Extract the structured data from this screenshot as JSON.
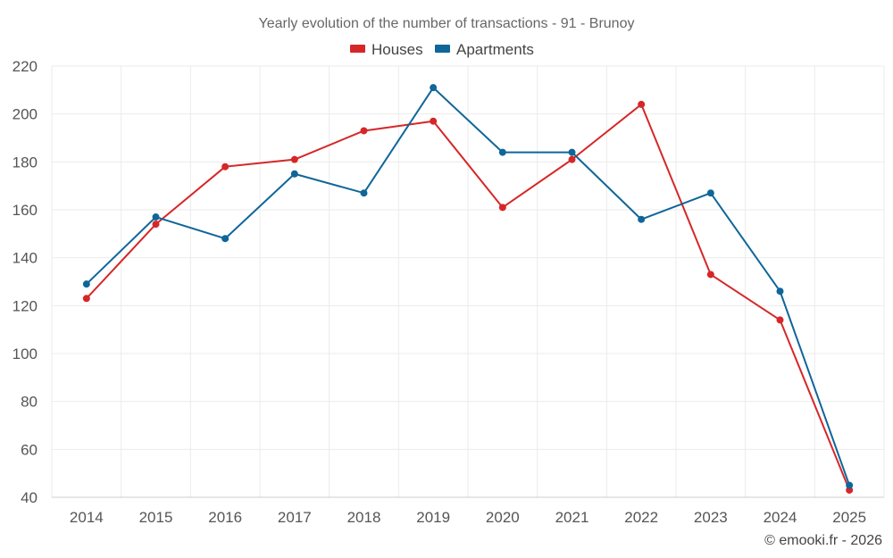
{
  "chart_data": {
    "type": "line",
    "title": "Yearly evolution of the number of transactions - 91 - Brunoy",
    "categories": [
      "2014",
      "2015",
      "2016",
      "2017",
      "2018",
      "2019",
      "2020",
      "2021",
      "2022",
      "2023",
      "2024",
      "2025"
    ],
    "yticks": [
      "220",
      "200",
      "180",
      "160",
      "140",
      "120",
      "100",
      "80",
      "60",
      "40"
    ],
    "ylim": [
      40,
      220
    ],
    "grid": true,
    "legend_position": "top-center",
    "series": [
      {
        "name": "Houses",
        "color": "#d62728",
        "values": [
          123,
          154,
          178,
          181,
          193,
          197,
          161,
          181,
          204,
          133,
          114,
          43
        ]
      },
      {
        "name": "Apartments",
        "color": "#0f6699",
        "values": [
          129,
          157,
          148,
          175,
          167,
          211,
          184,
          184,
          156,
          167,
          126,
          45
        ]
      }
    ],
    "xlabel": "",
    "ylabel": ""
  },
  "credit": "© emooki.fr - 2026"
}
